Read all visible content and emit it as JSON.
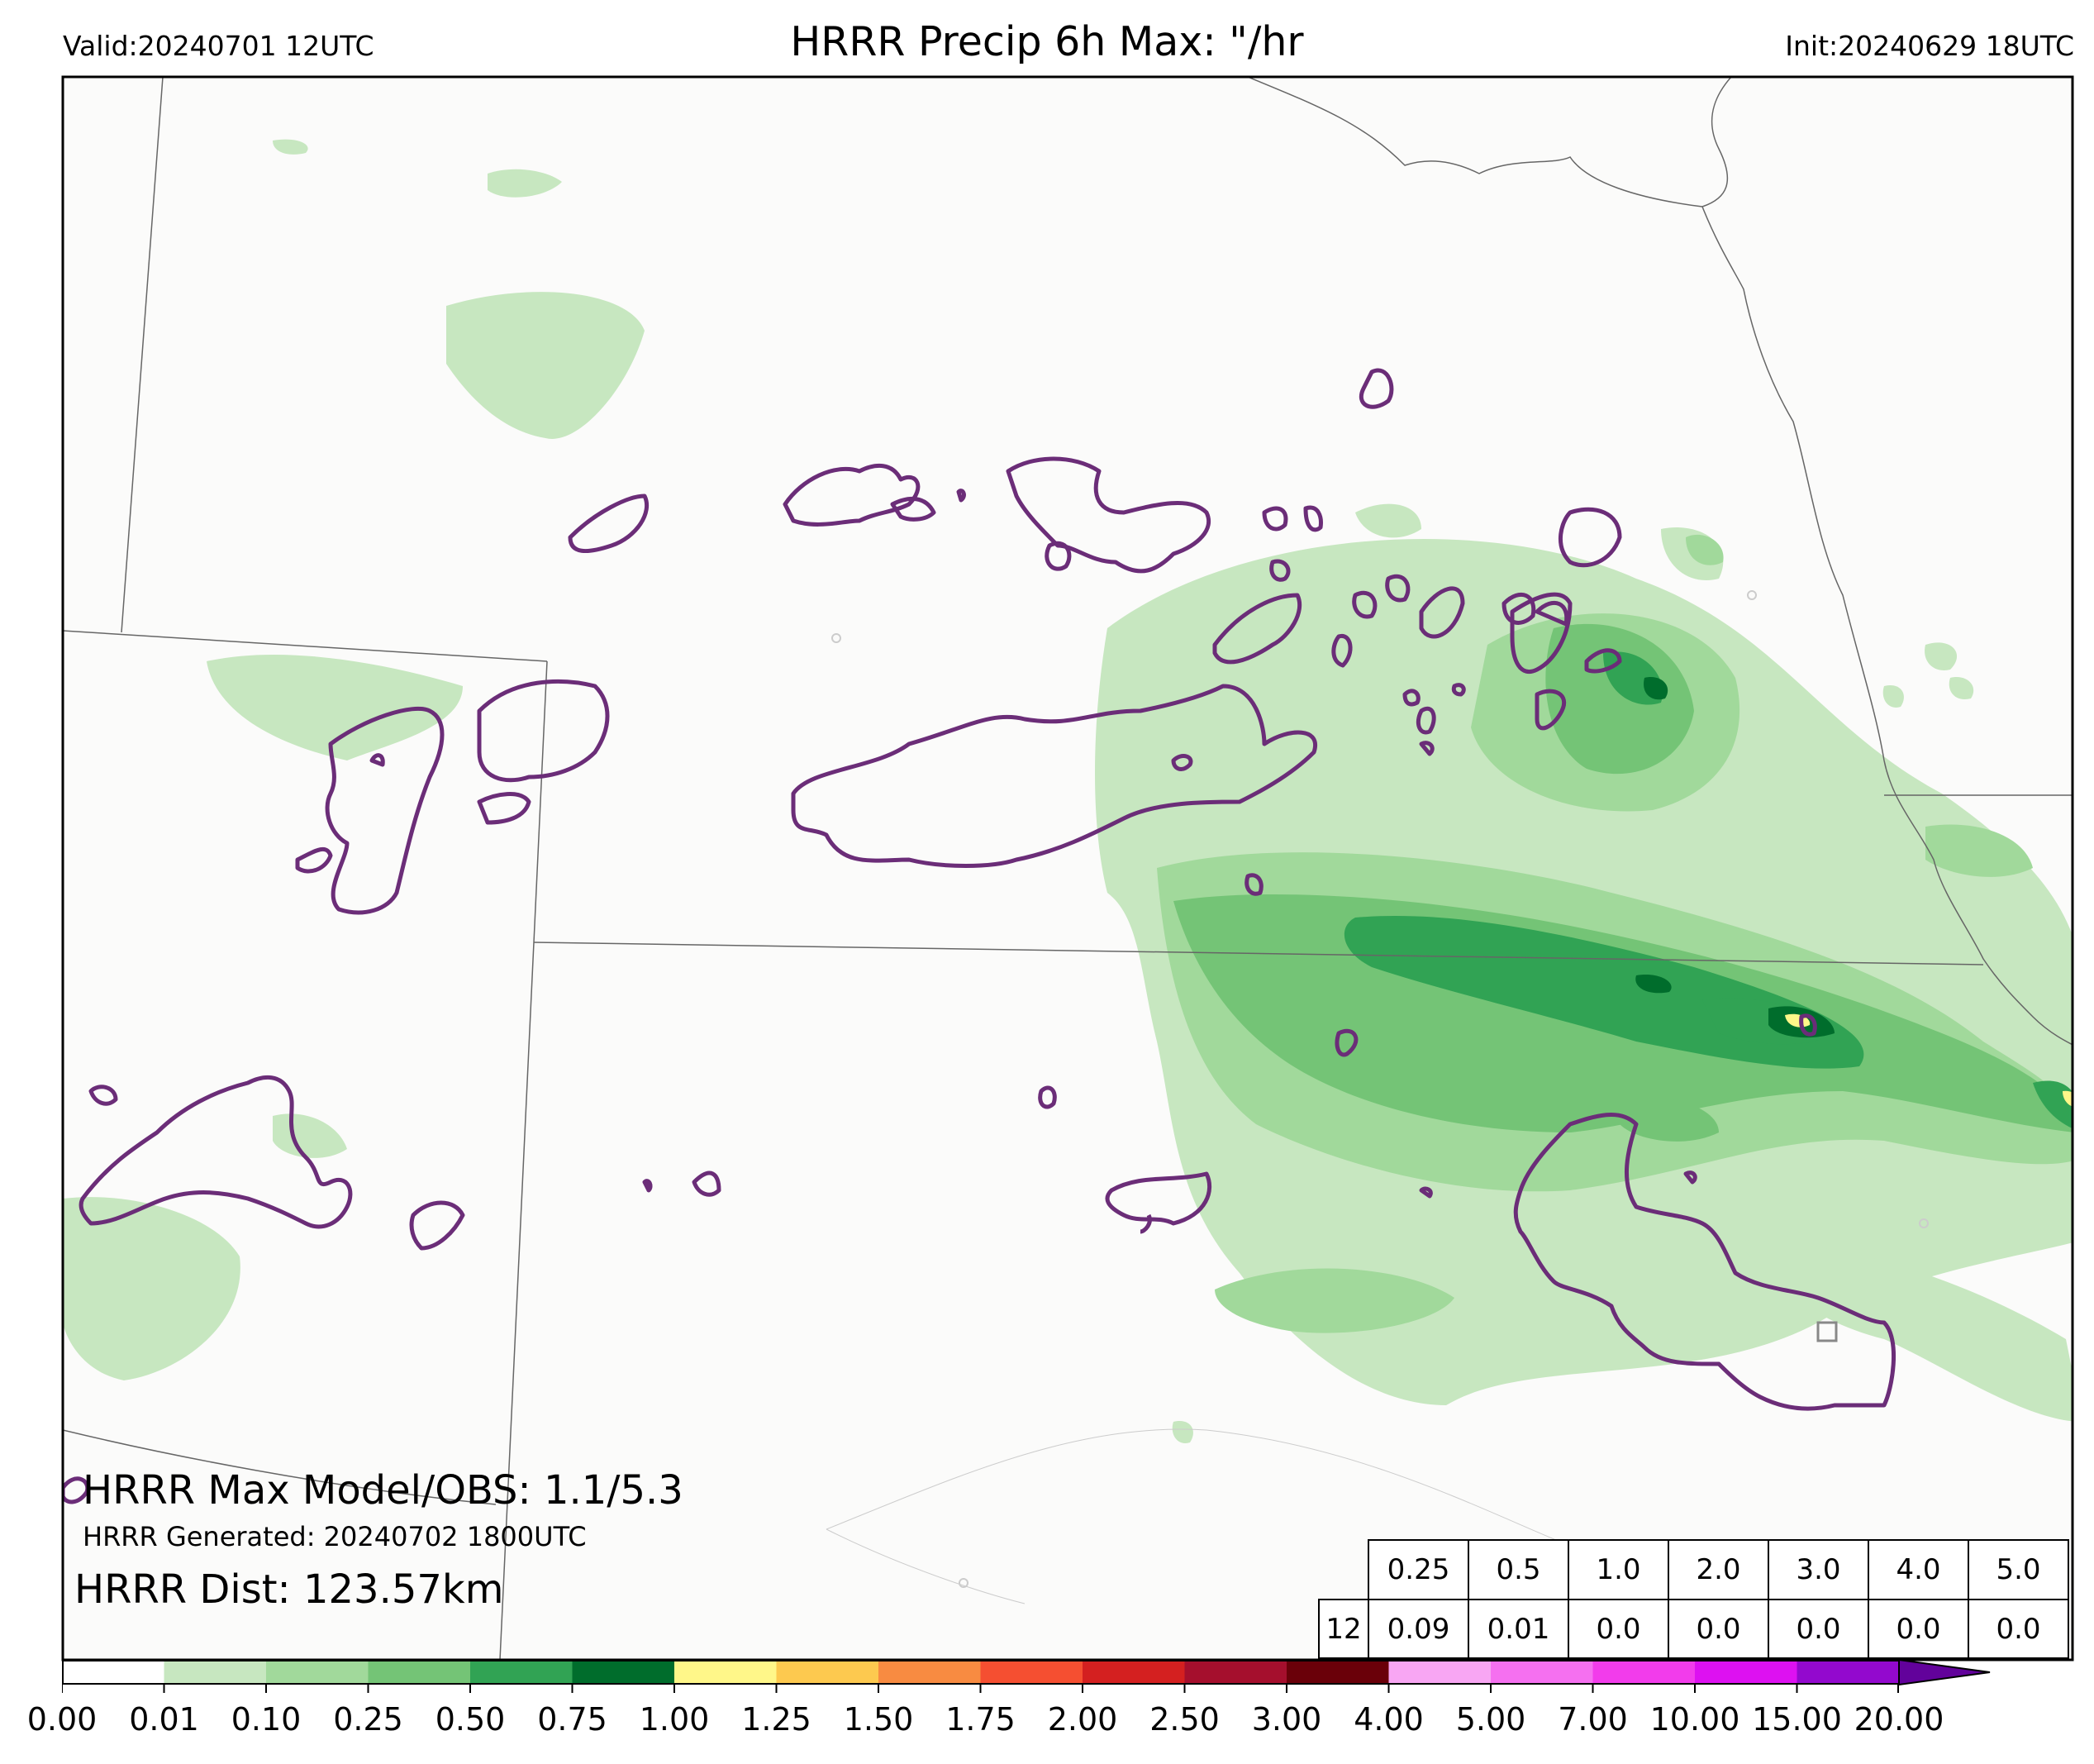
{
  "header": {
    "valid": "Valid:20240701 12UTC",
    "title": "HRRR Precip 6h Max: \"/hr",
    "init": "Init:20240629 18UTC"
  },
  "annotations": {
    "max_model_obs": "HRRR Max Model/OBS: 1.1/5.3",
    "generated": "HRRR Generated: 20240702 1800UTC",
    "dist": "HRRR Dist: 123.57km"
  },
  "stats_table": {
    "thresholds": [
      "0.25",
      "0.5",
      "1.0",
      "2.0",
      "3.0",
      "4.0",
      "5.0"
    ],
    "row_label": "12",
    "values": [
      "0.09",
      "0.01",
      "0.0",
      "0.0",
      "0.0",
      "0.0",
      "0.0"
    ]
  },
  "colorbar": {
    "ticks": [
      "0.00",
      "0.01",
      "0.10",
      "0.25",
      "0.50",
      "0.75",
      "1.00",
      "1.25",
      "1.50",
      "1.75",
      "2.00",
      "2.50",
      "3.00",
      "4.00",
      "5.00",
      "7.00",
      "10.00",
      "15.00",
      "20.00"
    ],
    "colors": [
      "#ffffff",
      "#c7e7c0",
      "#a1d99b",
      "#74c476",
      "#31a354",
      "#006d2c",
      "#fff789",
      "#fdc94f",
      "#f88b41",
      "#f54f31",
      "#d42020",
      "#a50f2d",
      "#6a0009",
      "#f8a6f3",
      "#f570f0",
      "#f23ceb",
      "#dd11f1",
      "#9309ce",
      "#62029b"
    ]
  },
  "map": {
    "precip_colors": [
      "#c7e7c0",
      "#a1d99b",
      "#74c476",
      "#31a354",
      "#006d2c",
      "#fff789"
    ],
    "obs_contour_color": "#6b2d78",
    "land_color": "#fbfbfa"
  }
}
